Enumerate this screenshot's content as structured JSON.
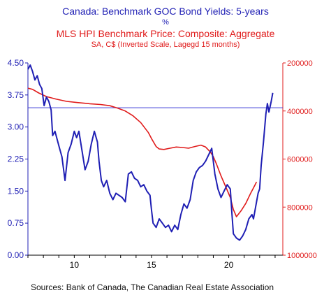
{
  "titles": {
    "line1": "Canada: Benchmark GOC Bond Yields: 5-years",
    "line2": "%",
    "line3": "MLS HPI Benchmark Price: Composite: Aggregate",
    "line4": "SA, C$ (Inverted Scale, Lagegd 15 months)"
  },
  "source": "Sources:  Bank of Canada, The Canadian Real Estate Association",
  "colors": {
    "blue": "#1f1fb4",
    "red": "#e01b1b",
    "reference_line": "#3a3ad8",
    "axis": "#000000"
  },
  "chart_data": {
    "type": "line",
    "x_range": [
      2007.0,
      2023.5
    ],
    "x_ticks": [
      10,
      15,
      20
    ],
    "x_tick_values": [
      2010,
      2015,
      2020
    ],
    "left_axis": {
      "range": [
        0.0,
        4.5
      ],
      "ticks": [
        "0.00",
        "0.75",
        "1.50",
        "2.25",
        "3.00",
        "3.75",
        "4.50"
      ],
      "tick_values": [
        0,
        0.75,
        1.5,
        2.25,
        3.0,
        3.75,
        4.5
      ]
    },
    "right_axis": {
      "inverted": true,
      "range": [
        200000,
        1000000
      ],
      "ticks": [
        "200000",
        "400000",
        "600000",
        "800000",
        "1000000"
      ],
      "tick_values": [
        200000,
        400000,
        600000,
        800000,
        1000000
      ]
    },
    "reference_line": {
      "axis": "left",
      "value": 3.45
    },
    "grid": false,
    "series": [
      {
        "axis": "left",
        "color": "#1f1fb4",
        "x": [
          2007.0,
          2007.15,
          2007.3,
          2007.45,
          2007.6,
          2007.75,
          2007.9,
          2008.05,
          2008.2,
          2008.35,
          2008.5,
          2008.6,
          2008.75,
          2008.9,
          2009.05,
          2009.2,
          2009.4,
          2009.6,
          2009.8,
          2010.0,
          2010.15,
          2010.3,
          2010.5,
          2010.7,
          2010.9,
          2011.1,
          2011.3,
          2011.5,
          2011.6,
          2011.75,
          2011.9,
          2012.1,
          2012.3,
          2012.5,
          2012.7,
          2012.9,
          2013.1,
          2013.3,
          2013.5,
          2013.7,
          2013.9,
          2014.1,
          2014.3,
          2014.5,
          2014.7,
          2014.9,
          2015.0,
          2015.1,
          2015.3,
          2015.5,
          2015.7,
          2015.9,
          2016.1,
          2016.3,
          2016.5,
          2016.7,
          2016.9,
          2017.1,
          2017.3,
          2017.5,
          2017.7,
          2017.9,
          2018.1,
          2018.3,
          2018.5,
          2018.7,
          2018.9,
          2019.1,
          2019.3,
          2019.5,
          2019.7,
          2019.9,
          2020.1,
          2020.2,
          2020.3,
          2020.5,
          2020.7,
          2020.9,
          2021.1,
          2021.3,
          2021.5,
          2021.6,
          2021.75,
          2021.9,
          2022.0,
          2022.1,
          2022.25,
          2022.4,
          2022.5,
          2022.6,
          2022.75,
          2022.85
        ],
        "y": [
          4.35,
          4.45,
          4.3,
          4.1,
          4.2,
          4.0,
          3.9,
          3.5,
          3.7,
          3.6,
          3.4,
          2.8,
          2.9,
          2.7,
          2.5,
          2.3,
          1.75,
          2.4,
          2.6,
          2.9,
          2.75,
          2.9,
          2.45,
          2.0,
          2.2,
          2.6,
          2.9,
          2.65,
          2.2,
          1.75,
          1.6,
          1.75,
          1.45,
          1.3,
          1.45,
          1.4,
          1.35,
          1.25,
          1.9,
          1.95,
          1.8,
          1.75,
          1.6,
          1.65,
          1.5,
          1.4,
          1.05,
          0.75,
          0.65,
          0.85,
          0.75,
          0.65,
          0.7,
          0.55,
          0.7,
          0.6,
          0.95,
          1.2,
          1.1,
          1.3,
          1.75,
          1.95,
          2.05,
          2.1,
          2.2,
          2.35,
          2.5,
          1.9,
          1.55,
          1.35,
          1.5,
          1.65,
          1.55,
          1.0,
          0.5,
          0.4,
          0.35,
          0.45,
          0.6,
          0.85,
          0.95,
          0.85,
          1.15,
          1.45,
          1.55,
          2.1,
          2.65,
          3.3,
          3.55,
          3.35,
          3.6,
          3.8
        ]
      },
      {
        "axis": "right",
        "color": "#e01b1b",
        "x": [
          2007.0,
          2007.3,
          2007.7,
          2008.2,
          2008.8,
          2009.5,
          2010.2,
          2011.0,
          2011.7,
          2012.3,
          2012.8,
          2013.3,
          2013.8,
          2014.3,
          2014.8,
          2015.0,
          2015.3,
          2015.5,
          2015.8,
          2016.2,
          2016.6,
          2017.0,
          2017.4,
          2017.8,
          2018.2,
          2018.5,
          2018.8,
          2019.0,
          2019.2,
          2019.5,
          2019.8,
          2020.1,
          2020.3,
          2020.5,
          2020.8,
          2021.1,
          2021.4,
          2021.6,
          2021.8
        ],
        "y": [
          305000,
          310000,
          325000,
          340000,
          350000,
          360000,
          365000,
          370000,
          373000,
          378000,
          388000,
          400000,
          420000,
          448000,
          490000,
          515000,
          548000,
          558000,
          560000,
          555000,
          550000,
          552000,
          555000,
          548000,
          542000,
          550000,
          570000,
          590000,
          620000,
          670000,
          715000,
          760000,
          810000,
          840000,
          815000,
          785000,
          745000,
          720000,
          695000
        ]
      }
    ]
  }
}
